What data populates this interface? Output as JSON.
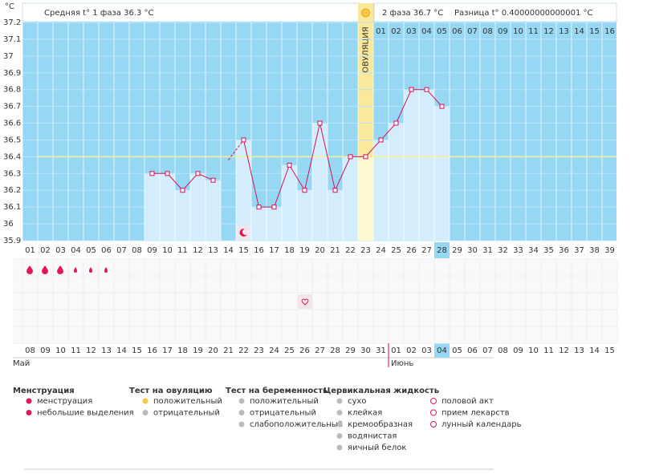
{
  "header": {
    "unit": "°С",
    "phase1": "Средняя t° 1 фаза  36.3 °С",
    "phase2": "2 фаза  36.7 °С",
    "difference": "Разница t° 0.40000000000001 °С"
  },
  "chart_data": {
    "type": "line",
    "categories": [
      "01",
      "02",
      "03",
      "04",
      "05",
      "06",
      "07",
      "08",
      "09",
      "10",
      "11",
      "12",
      "13",
      "14",
      "15",
      "16",
      "17",
      "18",
      "19",
      "20",
      "21",
      "22",
      "23",
      "24",
      "25",
      "26",
      "27",
      "28",
      "29",
      "30",
      "31",
      "32",
      "33",
      "34",
      "35",
      "36",
      "37",
      "38",
      "39"
    ],
    "series": [
      {
        "name": "t°",
        "color": "#d6105a",
        "values": [
          null,
          null,
          null,
          null,
          null,
          null,
          null,
          null,
          36.3,
          36.3,
          36.2,
          36.3,
          36.26,
          null,
          36.5,
          36.1,
          36.1,
          36.35,
          36.2,
          36.6,
          36.2,
          36.4,
          36.4,
          36.5,
          36.6,
          36.8,
          36.8,
          36.7,
          null,
          null,
          null,
          null,
          null,
          null,
          null,
          null,
          null,
          null,
          null
        ]
      }
    ],
    "ylim": [
      35.9,
      37.2
    ],
    "yticks": [
      35.9,
      36,
      36.1,
      36.2,
      36.3,
      36.4,
      36.5,
      36.6,
      36.7,
      36.8,
      36.9,
      37,
      37.1,
      37.2
    ],
    "coverline": 36.4,
    "ovulation": {
      "label": "ОВУЛЯЦИЯ",
      "category": "23"
    },
    "today": "28",
    "phase2_days": [
      "01",
      "02",
      "03",
      "04",
      "05",
      "06",
      "07",
      "08",
      "09",
      "10",
      "11",
      "12",
      "13",
      "14",
      "15",
      "16"
    ],
    "dates": [
      {
        "text": "08",
        "color": "#333333"
      },
      {
        "text": "09",
        "color": "#333333"
      },
      {
        "text": "10",
        "color": "#e0004d"
      },
      {
        "text": "11",
        "color": "#e0004d"
      },
      {
        "text": "12",
        "color": "#333333"
      },
      {
        "text": "13",
        "color": "#333333"
      },
      {
        "text": "14",
        "color": "#333333"
      },
      {
        "text": "15",
        "color": "#333333"
      },
      {
        "text": "16",
        "color": "#333333"
      },
      {
        "text": "17",
        "color": "#e0004d"
      },
      {
        "text": "18",
        "color": "#e0004d"
      },
      {
        "text": "19",
        "color": "#333333"
      },
      {
        "text": "20",
        "color": "#333333"
      },
      {
        "text": "21",
        "color": "#333333"
      },
      {
        "text": "22",
        "color": "#333333"
      },
      {
        "text": "23",
        "color": "#333333"
      },
      {
        "text": "24",
        "color": "#e0004d"
      },
      {
        "text": "25",
        "color": "#e0004d"
      },
      {
        "text": "26",
        "color": "#333333"
      },
      {
        "text": "27",
        "color": "#333333"
      },
      {
        "text": "28",
        "color": "#333333"
      },
      {
        "text": "29",
        "color": "#333333"
      },
      {
        "text": "30",
        "color": "#333333"
      },
      {
        "text": "31",
        "color": "#e0004d"
      },
      {
        "text": "01",
        "color": "#333333"
      },
      {
        "text": "02",
        "color": "#333333"
      },
      {
        "text": "03",
        "color": "#333333"
      },
      {
        "text": "04",
        "color": "#333333"
      },
      {
        "text": "05",
        "color": "#333333"
      },
      {
        "text": "06",
        "color": "#333333"
      },
      {
        "text": "07",
        "color": "#e0004d"
      },
      {
        "text": "08",
        "color": "#e0004d"
      },
      {
        "text": "09",
        "color": "#333333"
      },
      {
        "text": "10",
        "color": "#333333"
      },
      {
        "text": "11",
        "color": "#333333"
      },
      {
        "text": "12",
        "color": "#333333"
      },
      {
        "text": "13",
        "color": "#333333"
      },
      {
        "text": "14",
        "color": "#e0004d"
      },
      {
        "text": "15",
        "color": "#e0004d"
      }
    ]
  },
  "months": [
    "Май",
    "Июнь"
  ],
  "legend": [
    {
      "title": "Менструация",
      "items": [
        "менструация",
        "небольшие выделения"
      ]
    },
    {
      "title": "Тест на овуляцию",
      "items": [
        "положительный",
        "отрицательный"
      ]
    },
    {
      "title": "Тест на беременность",
      "items": [
        "положительный",
        "отрицательный",
        "слабоположительный"
      ]
    },
    {
      "title": "Цервикальная жидкость",
      "items": [
        "сухо",
        "клейкая",
        "кремообразная",
        "водянистая",
        "яичный белок"
      ]
    },
    {
      "title": "",
      "items": [
        "половой акт",
        "прием лекарств",
        "лунный календарь"
      ]
    }
  ]
}
